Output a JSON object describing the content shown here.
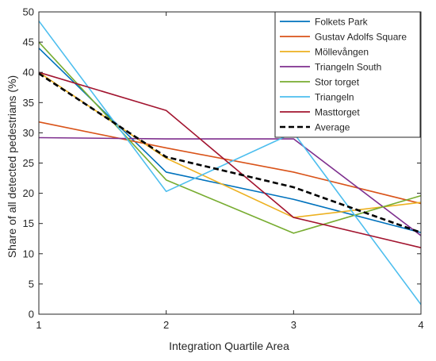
{
  "chart_data": {
    "type": "line",
    "title": "",
    "xlabel": "Integration Quartile Area",
    "ylabel": "Share of all detected pedestrians (%)",
    "xlim": [
      1,
      4
    ],
    "ylim": [
      0,
      50
    ],
    "x": [
      1,
      2,
      3,
      4
    ],
    "x_ticks": [
      "1",
      "2",
      "3",
      "4"
    ],
    "y_ticks": [
      "0",
      "5",
      "10",
      "15",
      "20",
      "25",
      "30",
      "35",
      "40",
      "45",
      "50"
    ],
    "grid": false,
    "legend_position": "top-right",
    "series": [
      {
        "name": "Folkets Park",
        "color": "#0072BD",
        "dash": "solid",
        "values": [
          44.0,
          23.5,
          19.0,
          13.5
        ]
      },
      {
        "name": "Gustav Adolfs Square",
        "color": "#D95319",
        "dash": "solid",
        "values": [
          31.8,
          27.5,
          23.5,
          18.3
        ]
      },
      {
        "name": "Möllevången",
        "color": "#EDB120",
        "dash": "solid",
        "values": [
          40.0,
          25.8,
          16.0,
          18.5
        ]
      },
      {
        "name": "Triangeln South",
        "color": "#7E2F8E",
        "dash": "solid",
        "values": [
          29.2,
          29.0,
          29.0,
          13.0
        ]
      },
      {
        "name": "Stor torget",
        "color": "#77AC30",
        "dash": "solid",
        "values": [
          45.0,
          22.2,
          13.4,
          19.6
        ]
      },
      {
        "name": "Triangeln",
        "color": "#4DBEEE",
        "dash": "solid",
        "values": [
          48.5,
          20.3,
          30.0,
          1.6
        ]
      },
      {
        "name": "Masttorget",
        "color": "#A2142F",
        "dash": "solid",
        "values": [
          40.0,
          33.7,
          16.0,
          11.0
        ]
      },
      {
        "name": "Average",
        "color": "#000000",
        "dash": "dashed",
        "values": [
          39.8,
          26.0,
          21.0,
          13.5
        ]
      }
    ]
  }
}
